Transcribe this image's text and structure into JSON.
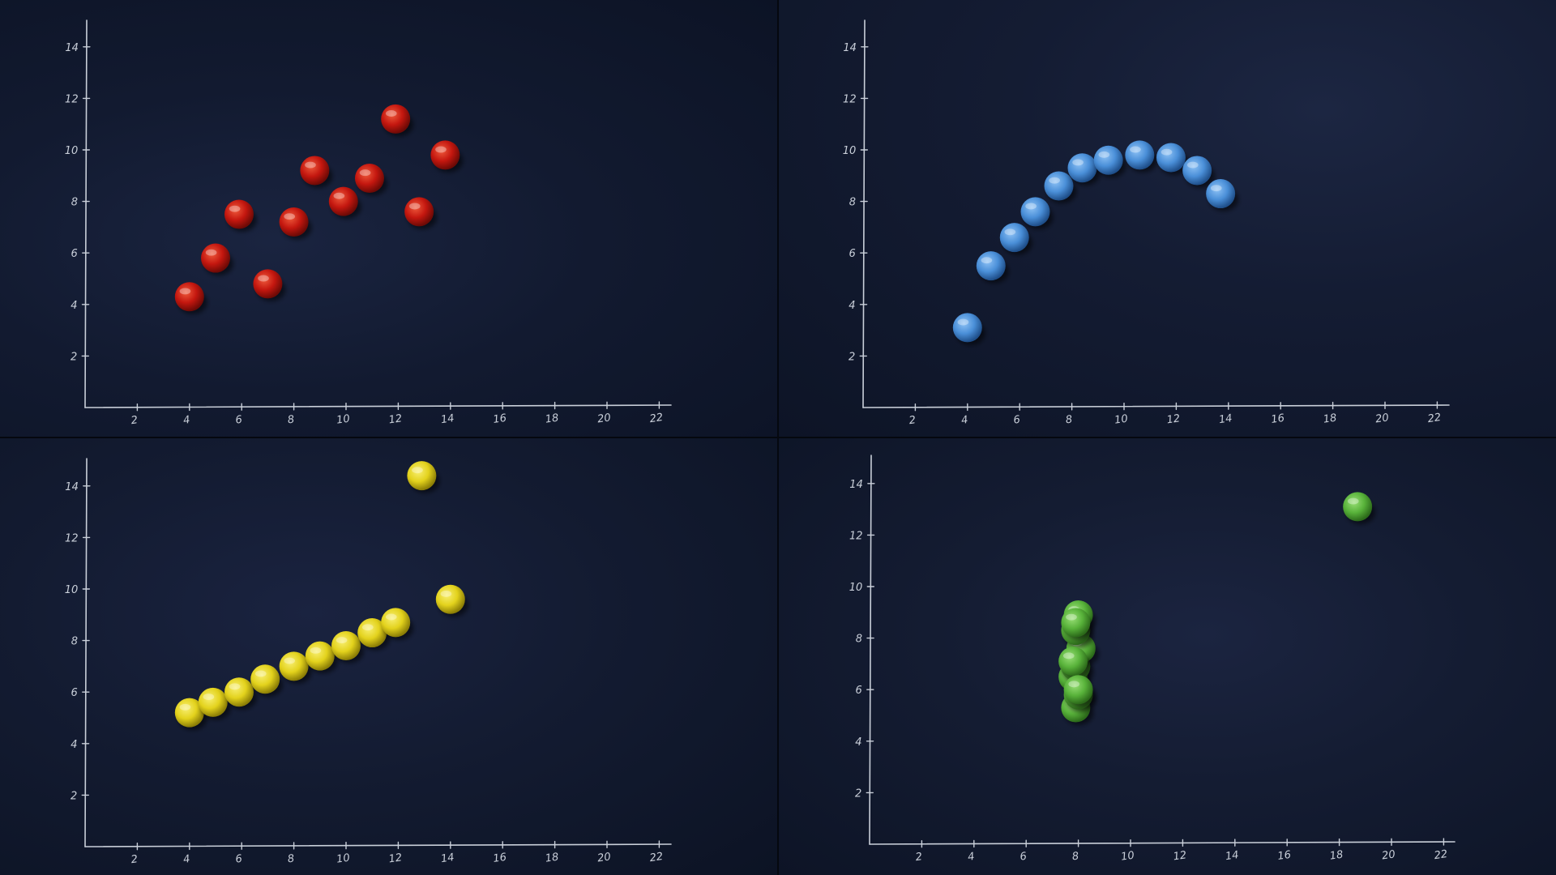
{
  "chart_data": [
    {
      "type": "scatter",
      "marker": "red-candy",
      "colors": {
        "base": "#c4170f",
        "light": "#ef5a3c",
        "dark": "#6e0a06"
      },
      "x_ticks": [
        2,
        4,
        6,
        8,
        10,
        12,
        14,
        16,
        18,
        20,
        22
      ],
      "y_ticks": [
        2,
        4,
        6,
        8,
        10,
        12,
        14
      ],
      "x_tick_labels": [
        "2",
        "4",
        "6",
        "8",
        "10",
        "12",
        "14",
        "16",
        "18",
        "20",
        "22"
      ],
      "y_tick_labels": [
        "2",
        "4",
        "6",
        "8",
        "10",
        "12",
        "14"
      ],
      "xlim": [
        0,
        22
      ],
      "ylim": [
        0,
        15
      ],
      "points": [
        {
          "x": 4.0,
          "y": 4.3
        },
        {
          "x": 5.0,
          "y": 5.8
        },
        {
          "x": 5.9,
          "y": 7.5
        },
        {
          "x": 7.0,
          "y": 4.8
        },
        {
          "x": 8.0,
          "y": 7.2
        },
        {
          "x": 8.8,
          "y": 9.2
        },
        {
          "x": 9.9,
          "y": 8.0
        },
        {
          "x": 10.9,
          "y": 8.9
        },
        {
          "x": 11.9,
          "y": 11.2
        },
        {
          "x": 12.8,
          "y": 7.6
        },
        {
          "x": 13.8,
          "y": 9.8
        }
      ]
    },
    {
      "type": "scatter",
      "marker": "blue-candy",
      "colors": {
        "base": "#4a8fd8",
        "light": "#8ec2f5",
        "dark": "#1f4f8a"
      },
      "x_ticks": [
        2,
        4,
        6,
        8,
        10,
        12,
        14,
        16,
        18,
        20,
        22
      ],
      "y_ticks": [
        2,
        4,
        6,
        8,
        10,
        12,
        14
      ],
      "x_tick_labels": [
        "2",
        "4",
        "6",
        "8",
        "10",
        "12",
        "14",
        "16",
        "18",
        "20",
        "22"
      ],
      "y_tick_labels": [
        "2",
        "4",
        "6",
        "8",
        "10",
        "12",
        "14"
      ],
      "xlim": [
        0,
        22
      ],
      "ylim": [
        0,
        15
      ],
      "points": [
        {
          "x": 4.0,
          "y": 3.1
        },
        {
          "x": 4.9,
          "y": 5.5
        },
        {
          "x": 5.8,
          "y": 6.6
        },
        {
          "x": 6.6,
          "y": 7.6
        },
        {
          "x": 7.5,
          "y": 8.6
        },
        {
          "x": 8.4,
          "y": 9.3
        },
        {
          "x": 9.4,
          "y": 9.6
        },
        {
          "x": 10.6,
          "y": 9.8
        },
        {
          "x": 11.8,
          "y": 9.7
        },
        {
          "x": 12.8,
          "y": 9.2
        },
        {
          "x": 13.7,
          "y": 8.3
        }
      ]
    },
    {
      "type": "scatter",
      "marker": "yellow-candy",
      "colors": {
        "base": "#e3d21c",
        "light": "#f8ef72",
        "dark": "#8c7e06"
      },
      "x_ticks": [
        2,
        4,
        6,
        8,
        10,
        12,
        14,
        16,
        18,
        20,
        22
      ],
      "y_ticks": [
        2,
        4,
        6,
        8,
        10,
        12,
        14
      ],
      "x_tick_labels": [
        "2",
        "4",
        "6",
        "8",
        "10",
        "12",
        "14",
        "16",
        "18",
        "20",
        "22"
      ],
      "y_tick_labels": [
        "2",
        "4",
        "6",
        "8",
        "10",
        "12",
        "14"
      ],
      "xlim": [
        0,
        22
      ],
      "ylim": [
        0,
        15
      ],
      "points": [
        {
          "x": 4.0,
          "y": 5.2
        },
        {
          "x": 4.9,
          "y": 5.6
        },
        {
          "x": 5.9,
          "y": 6.0
        },
        {
          "x": 6.9,
          "y": 6.5
        },
        {
          "x": 8.0,
          "y": 7.0
        },
        {
          "x": 9.0,
          "y": 7.4
        },
        {
          "x": 10.0,
          "y": 7.8
        },
        {
          "x": 11.0,
          "y": 8.3
        },
        {
          "x": 11.9,
          "y": 8.7
        },
        {
          "x": 12.9,
          "y": 14.4
        },
        {
          "x": 14.0,
          "y": 9.6
        }
      ]
    },
    {
      "type": "scatter",
      "marker": "green-candy",
      "colors": {
        "base": "#58b23a",
        "light": "#98df76",
        "dark": "#2c6a1a"
      },
      "x_ticks": [
        2,
        4,
        6,
        8,
        10,
        12,
        14,
        16,
        18,
        20,
        22
      ],
      "y_ticks": [
        2,
        4,
        6,
        8,
        10,
        12,
        14
      ],
      "x_tick_labels": [
        "2",
        "4",
        "6",
        "8",
        "10",
        "12",
        "14",
        "16",
        "18",
        "20",
        "22"
      ],
      "y_tick_labels": [
        "2",
        "4",
        "6",
        "8",
        "10",
        "12",
        "14"
      ],
      "xlim": [
        0,
        22
      ],
      "ylim": [
        0,
        15
      ],
      "points": [
        {
          "x": 7.9,
          "y": 5.3
        },
        {
          "x": 8.0,
          "y": 5.8
        },
        {
          "x": 7.8,
          "y": 6.5
        },
        {
          "x": 7.9,
          "y": 6.9
        },
        {
          "x": 8.1,
          "y": 7.6
        },
        {
          "x": 7.9,
          "y": 8.3
        },
        {
          "x": 8.0,
          "y": 8.9
        },
        {
          "x": 7.8,
          "y": 7.1
        },
        {
          "x": 8.0,
          "y": 6.0
        },
        {
          "x": 7.9,
          "y": 8.6
        },
        {
          "x": 18.7,
          "y": 13.1
        }
      ]
    }
  ]
}
